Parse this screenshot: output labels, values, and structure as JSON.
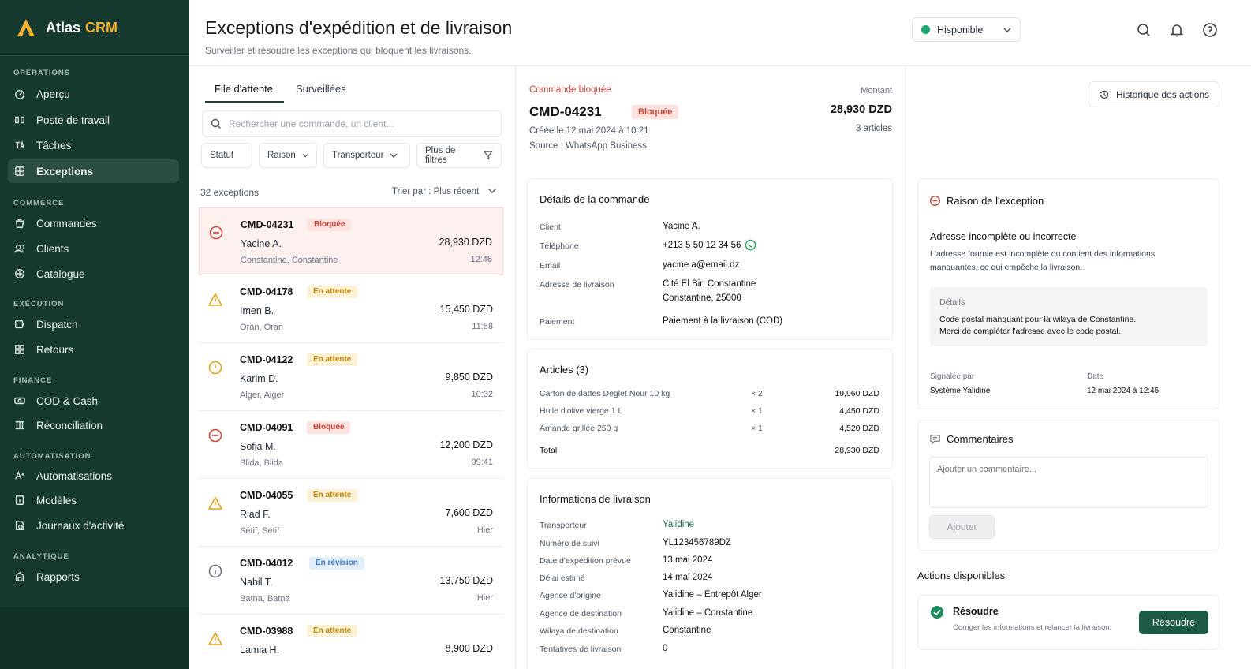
{
  "brand": {
    "name": "Atlas",
    "suffix": "CRM"
  },
  "sidebar": {
    "sections": [
      "OPÉRATIONS",
      "COMMERCE",
      "EXÉCUTION",
      "FINANCE",
      "AUTOMATISATION",
      "ANALYTIQUE"
    ],
    "items": [
      {
        "label": "Aperçu",
        "icon": "gauge-icon"
      },
      {
        "label": "Poste de travail",
        "icon": "workstation-icon"
      },
      {
        "label": "Tâches",
        "icon": "tasks-icon"
      },
      {
        "label": "Exceptions",
        "icon": "exceptions-icon",
        "active": true
      },
      {
        "label": "Commandes",
        "icon": "bag-icon"
      },
      {
        "label": "Clients",
        "icon": "users-icon"
      },
      {
        "label": "Catalogue",
        "icon": "catalog-icon"
      },
      {
        "label": "Dispatch",
        "icon": "dispatch-icon"
      },
      {
        "label": "Retours",
        "icon": "returns-icon"
      },
      {
        "label": "COD & Cash",
        "icon": "cash-icon"
      },
      {
        "label": "Réconciliation",
        "icon": "reconcile-icon"
      },
      {
        "label": "Automatisations",
        "icon": "automation-icon"
      },
      {
        "label": "Modèles",
        "icon": "template-icon"
      },
      {
        "label": "Journaux d'activité",
        "icon": "log-icon"
      },
      {
        "label": "Rapports",
        "icon": "reports-icon"
      }
    ]
  },
  "header": {
    "title": "Exceptions d'expédition et de livraison",
    "subtitle": "Surveiller et résoudre les exceptions qui bloquent les livraisons.",
    "status": "Hisponible"
  },
  "list": {
    "tabs": [
      "File d'attente",
      "Surveillées"
    ],
    "search_placeholder": "Rechercher une commande, un client...",
    "filters": [
      "Statut",
      "Raison",
      "Transporteur",
      "Plus de filtres"
    ],
    "count": "32 exceptions",
    "sort": "Trier par : Plus récent",
    "rows": [
      {
        "id": "CMD-04231",
        "status": "Bloquée",
        "name": "Yacine A.",
        "city": "Constantine, Constantine",
        "amount": "28,930 DZD",
        "time": "12:46"
      },
      {
        "id": "CMD-04178",
        "status": "En attente",
        "name": "Imen B.",
        "city": "Oran, Oran",
        "amount": "15,450 DZD",
        "time": "11:58"
      },
      {
        "id": "CMD-04122",
        "status": "En attente",
        "name": "Karim D.",
        "city": "Alger, Alger",
        "amount": "9,850 DZD",
        "time": "10:32"
      },
      {
        "id": "CMD-04091",
        "status": "Bloquée",
        "name": "Sofia M.",
        "city": "Blida, Blida",
        "amount": "12,200 DZD",
        "time": "09:41"
      },
      {
        "id": "CMD-04055",
        "status": "En attente",
        "name": "Riad F.",
        "city": "Sétif, Sétif",
        "amount": "7,600 DZD",
        "time": "Hier"
      },
      {
        "id": "CMD-04012",
        "status": "En révision",
        "name": "Nabil T.",
        "city": "Batna, Batna",
        "amount": "13,750 DZD",
        "time": "Hier"
      },
      {
        "id": "CMD-03988",
        "status": "En attente",
        "name": "Lamia H.",
        "city": "",
        "amount": "8,900 DZD",
        "time": ""
      }
    ]
  },
  "order": {
    "label": "Commande bloquée",
    "id": "CMD-04231",
    "status": "Bloquée",
    "created": "Créée le 12 mai 2024 à 10:21",
    "source": "Source : WhatsApp Business",
    "amount_label": "Montant",
    "amount": "28,930 DZD",
    "articles_count": "3 articles"
  },
  "details": {
    "title": "Détails de la commande",
    "labels": [
      "Client",
      "Téléphone",
      "Email",
      "Adresse de livraison",
      "Paiement"
    ],
    "client": "Yacine A.",
    "phone": "+213 5 50 12 34 56",
    "email": "yacine.a@email.dz",
    "address1": "Cité El Bir, Constantine",
    "address2": "Constantine, 25000",
    "payment": "Paiement à la livraison (COD)"
  },
  "articles": {
    "title": "Articles (3)",
    "items": [
      {
        "name": "Carton de dattes Deglet Nour 10 kg",
        "qty": "× 2",
        "price": "19,960 DZD"
      },
      {
        "name": "Huile d'olive vierge 1 L",
        "qty": "× 1",
        "price": "4,450 DZD"
      },
      {
        "name": "Amande grillée 250 g",
        "qty": "× 1",
        "price": "4,520 DZD"
      }
    ],
    "total_label": "Total",
    "total": "28,930 DZD"
  },
  "delivery": {
    "title": "Informations de livraison",
    "rows": [
      {
        "label": "Transporteur",
        "value": "Yalidine"
      },
      {
        "label": "Numéro de suivi",
        "value": "YL123456789DZ"
      },
      {
        "label": "Date d'expédition prévue",
        "value": "13 mai 2024"
      },
      {
        "label": "Délai estimé",
        "value": "14 mai 2024"
      },
      {
        "label": "Agence d'origine",
        "value": "Yalidine – Entrepôt Alger"
      },
      {
        "label": "Agence de destination",
        "value": "Yalidine – Constantine"
      },
      {
        "label": "Wilaya de destination",
        "value": "Constantine"
      },
      {
        "label": "Tentatives de livraison",
        "value": "0"
      }
    ]
  },
  "right": {
    "history_button": "Historique des actions",
    "reason_title": "Raison de l'exception",
    "reason_heading": "Adresse incomplète ou incorrecte",
    "reason_text1": "L'adresse fournie est incomplète ou contient des informations",
    "reason_text2": "manquantes, ce qui empêche la livraison.",
    "details_label": "Détails",
    "details_line1": "Code postal manquant pour la wilaya de Constantine.",
    "details_line2": "Merci de compléter l'adresse avec le code postal.",
    "reported_by_label": "Signalée par",
    "reported_by": "Système Yalidine",
    "date_label": "Date",
    "date": "12 mai 2024 à 12:45",
    "comments_title": "Commentaires",
    "comment_placeholder": "Ajouter un commentaire...",
    "add_button": "Ajouter",
    "actions_title": "Actions disponibles",
    "resolve_title": "Résoudre",
    "resolve_desc": "Corriger les informations et relancer la livraison.",
    "resolve_button": "Résoudre"
  },
  "colors": {
    "sidebar": "#173a30",
    "accent": "#f2b233",
    "danger": "#c9453a",
    "primary": "#1d5a45"
  }
}
